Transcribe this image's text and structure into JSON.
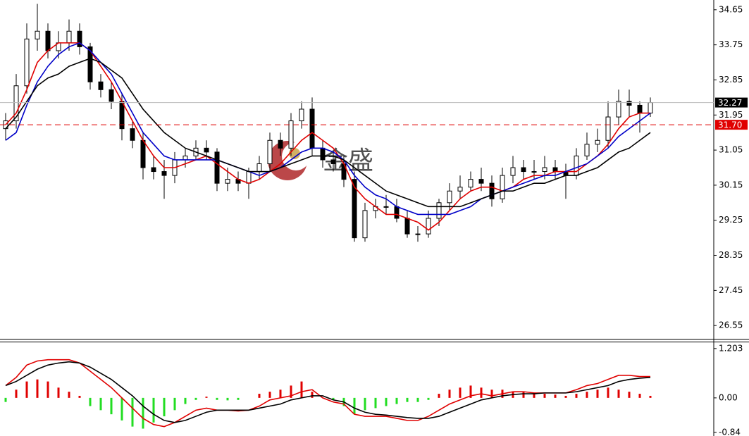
{
  "chart_data": [
    {
      "type": "candlestick",
      "watermark": "金盛",
      "open": [
        31.6,
        31.8,
        32.7,
        33.9,
        34.1,
        33.6,
        33.8,
        34.1,
        33.7,
        32.8,
        32.6,
        32.3,
        31.6,
        31.3,
        30.6,
        30.5,
        30.4,
        30.8,
        30.9,
        31.1,
        31.0,
        30.2,
        30.3,
        30.2,
        30.5,
        30.7,
        31.3,
        31.1,
        31.8,
        32.1,
        31.1,
        30.8,
        30.7,
        30.3,
        28.8,
        29.5,
        29.6,
        29.6,
        29.3,
        28.9,
        28.9,
        29.3,
        29.7,
        30.0,
        30.1,
        30.3,
        30.2,
        29.8,
        30.4,
        30.6,
        30.5,
        30.5,
        30.6,
        30.5,
        30.4,
        30.9,
        31.2,
        31.3,
        31.9,
        32.3,
        32.2,
        32.0
      ],
      "high": [
        32.0,
        33.0,
        34.3,
        34.8,
        34.3,
        34.1,
        34.4,
        34.3,
        33.8,
        33.0,
        32.8,
        32.5,
        31.8,
        31.5,
        30.9,
        30.8,
        31.0,
        31.1,
        31.3,
        31.3,
        31.1,
        30.6,
        30.5,
        30.6,
        30.9,
        31.5,
        31.5,
        32.0,
        32.3,
        32.4,
        31.3,
        31.0,
        30.9,
        30.5,
        29.7,
        29.8,
        29.9,
        29.8,
        29.5,
        29.1,
        29.5,
        29.8,
        30.2,
        30.4,
        30.5,
        30.6,
        30.4,
        30.6,
        30.9,
        30.8,
        30.8,
        30.9,
        30.8,
        30.7,
        31.1,
        31.5,
        31.6,
        32.3,
        32.6,
        32.6,
        32.3,
        32.4
      ],
      "low": [
        31.3,
        31.6,
        32.5,
        33.6,
        33.4,
        33.4,
        33.6,
        33.5,
        32.6,
        32.4,
        32.1,
        31.3,
        31.1,
        30.3,
        30.3,
        29.8,
        30.2,
        30.6,
        30.8,
        30.8,
        30.0,
        30.0,
        30.0,
        29.8,
        30.3,
        30.5,
        30.9,
        30.9,
        31.6,
        30.9,
        30.6,
        30.5,
        30.1,
        28.7,
        28.7,
        29.3,
        29.4,
        29.2,
        28.8,
        28.7,
        28.8,
        29.1,
        29.5,
        29.8,
        30.0,
        30.0,
        29.6,
        29.7,
        30.2,
        30.3,
        30.3,
        30.3,
        30.3,
        29.8,
        30.3,
        30.8,
        31.0,
        31.1,
        31.7,
        31.9,
        31.5,
        31.9
      ],
      "close": [
        31.8,
        32.7,
        33.9,
        34.1,
        33.6,
        33.8,
        34.1,
        33.7,
        32.8,
        32.6,
        32.3,
        31.6,
        31.3,
        30.6,
        30.5,
        30.4,
        30.8,
        30.9,
        31.1,
        31.0,
        30.2,
        30.3,
        30.2,
        30.5,
        30.7,
        31.3,
        31.1,
        31.8,
        32.1,
        31.1,
        30.8,
        30.7,
        30.3,
        28.8,
        29.5,
        29.6,
        29.6,
        29.3,
        28.9,
        28.9,
        29.3,
        29.7,
        30.0,
        30.1,
        30.3,
        30.2,
        29.8,
        30.4,
        30.6,
        30.5,
        30.5,
        30.6,
        30.5,
        30.4,
        30.9,
        31.2,
        31.3,
        31.9,
        32.3,
        32.2,
        32.0,
        32.27
      ],
      "up_color": "#ffffff",
      "down_color": "#000000",
      "series": [
        {
          "color": "#e00000",
          "values": [
            31.7,
            32.0,
            32.6,
            33.3,
            33.6,
            33.8,
            33.8,
            33.8,
            33.6,
            33.2,
            32.8,
            32.3,
            31.8,
            31.3,
            30.9,
            30.6,
            30.6,
            30.7,
            30.8,
            30.9,
            30.7,
            30.5,
            30.3,
            30.2,
            30.3,
            30.5,
            30.7,
            31.0,
            31.3,
            31.5,
            31.3,
            31.1,
            30.7,
            30.1,
            29.8,
            29.6,
            29.4,
            29.4,
            29.3,
            29.2,
            29.0,
            29.2,
            29.5,
            29.8,
            30.0,
            30.1,
            30.1,
            30.0,
            30.1,
            30.3,
            30.4,
            30.4,
            30.5,
            30.5,
            30.5,
            30.7,
            30.9,
            31.2,
            31.6,
            31.9,
            32.0,
            32.0
          ]
        },
        {
          "color": "#0000c8",
          "values": [
            31.3,
            31.5,
            32.2,
            32.8,
            33.2,
            33.5,
            33.7,
            33.8,
            33.6,
            33.3,
            33.0,
            32.5,
            32.0,
            31.5,
            31.2,
            30.9,
            30.8,
            30.8,
            30.8,
            30.8,
            30.8,
            30.7,
            30.6,
            30.5,
            30.4,
            30.5,
            30.6,
            30.8,
            31.0,
            31.1,
            31.1,
            31.0,
            30.8,
            30.4,
            30.1,
            29.9,
            29.8,
            29.6,
            29.5,
            29.4,
            29.4,
            29.4,
            29.4,
            29.5,
            29.6,
            29.8,
            29.9,
            30.0,
            30.1,
            30.2,
            30.3,
            30.4,
            30.4,
            30.5,
            30.6,
            30.7,
            30.9,
            31.1,
            31.4,
            31.6,
            31.8,
            32.0
          ]
        },
        {
          "color": "#000000",
          "values": [
            31.6,
            31.9,
            32.3,
            32.7,
            32.9,
            33.0,
            33.2,
            33.3,
            33.4,
            33.3,
            33.1,
            32.9,
            32.5,
            32.1,
            31.8,
            31.5,
            31.3,
            31.1,
            31.0,
            30.9,
            30.8,
            30.7,
            30.6,
            30.5,
            30.5,
            30.5,
            30.6,
            30.7,
            30.8,
            30.9,
            30.9,
            30.9,
            30.8,
            30.6,
            30.4,
            30.2,
            30.0,
            29.9,
            29.8,
            29.7,
            29.6,
            29.6,
            29.6,
            29.6,
            29.7,
            29.8,
            29.9,
            30.0,
            30.0,
            30.1,
            30.2,
            30.2,
            30.3,
            30.4,
            30.4,
            30.5,
            30.6,
            30.8,
            31.0,
            31.1,
            31.3,
            31.5
          ]
        }
      ],
      "ylim": [
        26.21,
        34.9
      ],
      "yticks": [
        34.65,
        33.75,
        32.85,
        31.95,
        31.05,
        30.15,
        29.25,
        28.35,
        27.45,
        26.55
      ],
      "price_marks": [
        {
          "value": 32.27,
          "color": "#000000"
        },
        {
          "value": 31.7,
          "label": "31.70",
          "color": "#e00000",
          "dashed": true
        }
      ]
    },
    {
      "type": "macd",
      "values": [
        -0.1,
        0.2,
        0.4,
        0.45,
        0.4,
        0.25,
        0.15,
        0.05,
        -0.2,
        -0.3,
        -0.4,
        -0.55,
        -0.7,
        -0.75,
        -0.6,
        -0.45,
        -0.3,
        -0.15,
        -0.05,
        0.03,
        -0.05,
        -0.06,
        -0.05,
        0.0,
        0.1,
        0.15,
        0.2,
        0.3,
        0.4,
        0.15,
        0.0,
        -0.05,
        -0.2,
        -0.4,
        -0.3,
        -0.25,
        -0.2,
        -0.15,
        -0.1,
        -0.1,
        -0.05,
        0.1,
        0.2,
        0.25,
        0.3,
        0.25,
        0.2,
        0.2,
        0.15,
        0.15,
        0.12,
        0.1,
        0.08,
        0.05,
        0.1,
        0.15,
        0.2,
        0.25,
        0.2,
        0.15,
        0.1,
        0.05
      ],
      "pos_color": "#e00000",
      "neg_color": "#22dd22",
      "series": [
        {
          "color": "#e00000",
          "values": [
            0.3,
            0.5,
            0.8,
            0.9,
            0.93,
            0.93,
            0.93,
            0.85,
            0.65,
            0.45,
            0.25,
            0.0,
            -0.25,
            -0.5,
            -0.65,
            -0.7,
            -0.6,
            -0.45,
            -0.3,
            -0.25,
            -0.3,
            -0.3,
            -0.32,
            -0.3,
            -0.2,
            -0.05,
            0.0,
            0.05,
            0.15,
            0.2,
            0.0,
            -0.1,
            -0.15,
            -0.4,
            -0.45,
            -0.45,
            -0.45,
            -0.5,
            -0.55,
            -0.55,
            -0.45,
            -0.3,
            -0.15,
            -0.05,
            0.05,
            0.1,
            0.05,
            0.1,
            0.15,
            0.15,
            0.12,
            0.12,
            0.12,
            0.12,
            0.2,
            0.3,
            0.35,
            0.45,
            0.55,
            0.55,
            0.52,
            0.52
          ]
        },
        {
          "color": "#000000",
          "values": [
            0.3,
            0.4,
            0.55,
            0.7,
            0.8,
            0.85,
            0.88,
            0.85,
            0.75,
            0.6,
            0.45,
            0.25,
            0.05,
            -0.2,
            -0.4,
            -0.55,
            -0.6,
            -0.55,
            -0.45,
            -0.35,
            -0.3,
            -0.3,
            -0.3,
            -0.3,
            -0.25,
            -0.2,
            -0.15,
            -0.05,
            0.0,
            0.05,
            0.05,
            -0.05,
            -0.1,
            -0.25,
            -0.35,
            -0.4,
            -0.42,
            -0.45,
            -0.48,
            -0.5,
            -0.5,
            -0.45,
            -0.35,
            -0.25,
            -0.15,
            -0.05,
            0.0,
            0.05,
            0.08,
            0.1,
            0.1,
            0.12,
            0.12,
            0.12,
            0.15,
            0.2,
            0.25,
            0.3,
            0.4,
            0.45,
            0.48,
            0.5
          ]
        }
      ],
      "ylim": [
        -0.93,
        1.355
      ],
      "yticks": [
        1.203,
        {
          "value": 0,
          "label": "0.00"
        },
        -0.84
      ]
    }
  ]
}
